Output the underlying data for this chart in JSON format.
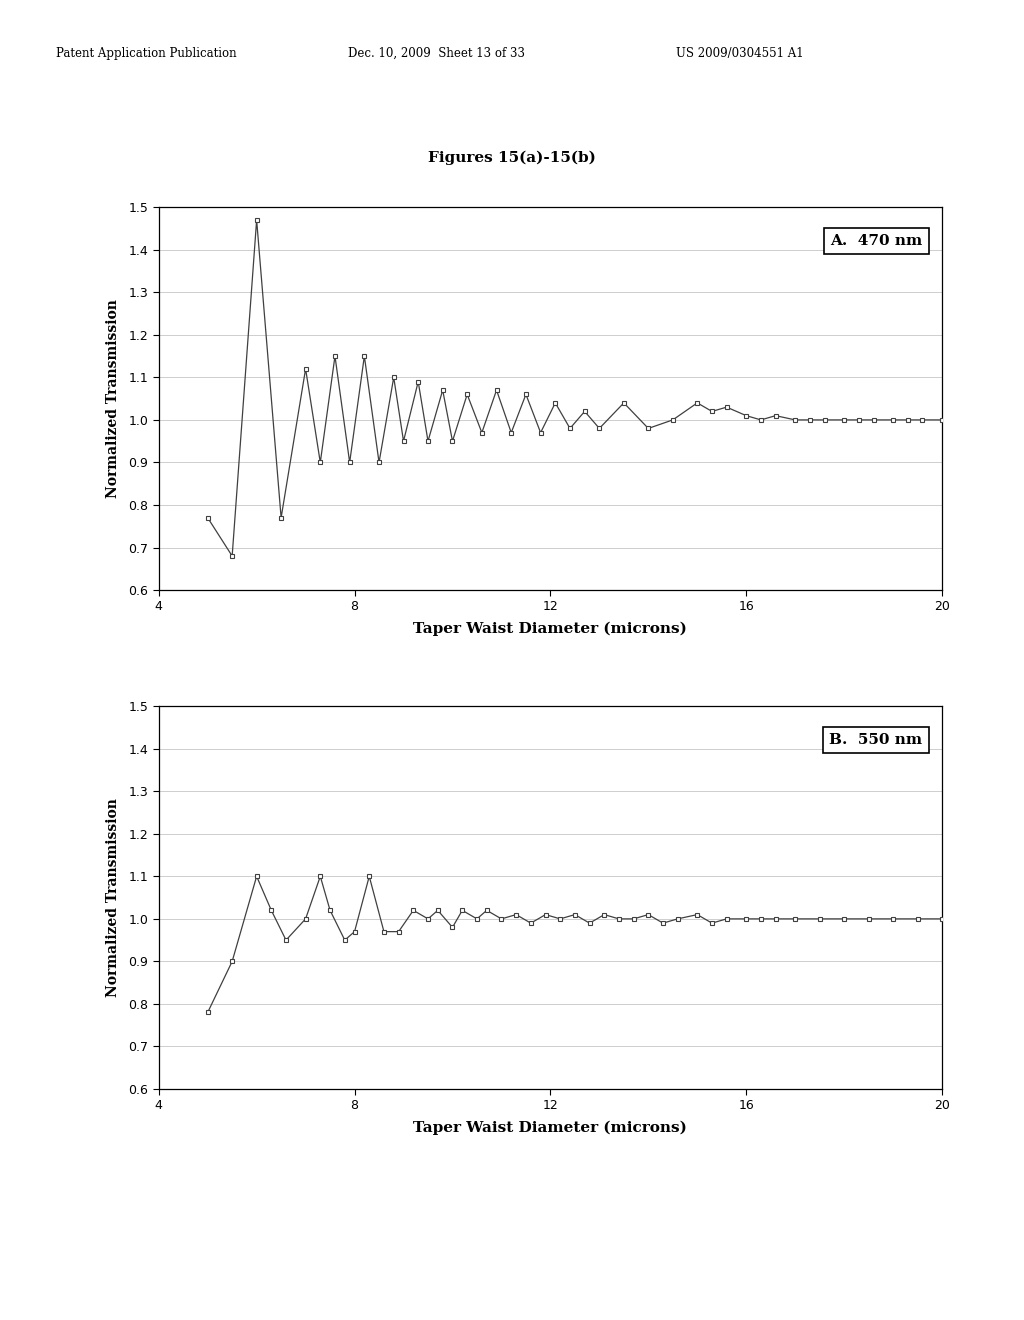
{
  "title": "Figures 15(a)-15(b)",
  "header_left": "Patent Application Publication",
  "header_center": "Dec. 10, 2009  Sheet 13 of 33",
  "header_right": "US 2009/0304551 A1",
  "xlabel": "Taper Waist Diameter (microns)",
  "ylabel": "Normalized Transmission",
  "xlim": [
    4,
    20
  ],
  "ylim": [
    0.6,
    1.5
  ],
  "xticks": [
    4,
    8,
    12,
    16,
    20
  ],
  "yticks": [
    0.6,
    0.7,
    0.8,
    0.9,
    1.0,
    1.1,
    1.2,
    1.3,
    1.4,
    1.5
  ],
  "plot_A_label": "A.  470 nm",
  "plot_B_label": "B.  550 nm",
  "plot_A_pts": [
    [
      5.0,
      0.77
    ],
    [
      5.5,
      0.68
    ],
    [
      6.0,
      1.47
    ],
    [
      6.5,
      0.77
    ],
    [
      7.0,
      1.12
    ],
    [
      7.3,
      0.9
    ],
    [
      7.6,
      1.15
    ],
    [
      7.9,
      0.9
    ],
    [
      8.2,
      1.15
    ],
    [
      8.5,
      0.9
    ],
    [
      8.8,
      1.1
    ],
    [
      9.0,
      0.95
    ],
    [
      9.3,
      1.09
    ],
    [
      9.5,
      0.95
    ],
    [
      9.8,
      1.07
    ],
    [
      10.0,
      0.95
    ],
    [
      10.3,
      1.06
    ],
    [
      10.6,
      0.97
    ],
    [
      10.9,
      1.07
    ],
    [
      11.2,
      0.97
    ],
    [
      11.5,
      1.06
    ],
    [
      11.8,
      0.97
    ],
    [
      12.1,
      1.04
    ],
    [
      12.4,
      0.98
    ],
    [
      12.7,
      1.02
    ],
    [
      13.0,
      0.98
    ],
    [
      13.5,
      1.04
    ],
    [
      14.0,
      0.98
    ],
    [
      14.5,
      1.0
    ],
    [
      15.0,
      1.04
    ],
    [
      15.3,
      1.02
    ],
    [
      15.6,
      1.03
    ],
    [
      16.0,
      1.01
    ],
    [
      16.3,
      1.0
    ],
    [
      16.6,
      1.01
    ],
    [
      17.0,
      1.0
    ],
    [
      17.3,
      1.0
    ],
    [
      17.6,
      1.0
    ],
    [
      18.0,
      1.0
    ],
    [
      18.3,
      1.0
    ],
    [
      18.6,
      1.0
    ],
    [
      19.0,
      1.0
    ],
    [
      19.3,
      1.0
    ],
    [
      19.6,
      1.0
    ],
    [
      20.0,
      1.0
    ]
  ],
  "plot_B_pts": [
    [
      5.0,
      0.78
    ],
    [
      5.5,
      0.9
    ],
    [
      6.0,
      1.1
    ],
    [
      6.3,
      1.02
    ],
    [
      6.6,
      0.95
    ],
    [
      7.0,
      1.0
    ],
    [
      7.3,
      1.1
    ],
    [
      7.5,
      1.02
    ],
    [
      7.8,
      0.95
    ],
    [
      8.0,
      0.97
    ],
    [
      8.3,
      1.1
    ],
    [
      8.6,
      0.97
    ],
    [
      8.9,
      0.97
    ],
    [
      9.2,
      1.02
    ],
    [
      9.5,
      1.0
    ],
    [
      9.7,
      1.02
    ],
    [
      10.0,
      0.98
    ],
    [
      10.2,
      1.02
    ],
    [
      10.5,
      1.0
    ],
    [
      10.7,
      1.02
    ],
    [
      11.0,
      1.0
    ],
    [
      11.3,
      1.01
    ],
    [
      11.6,
      0.99
    ],
    [
      11.9,
      1.01
    ],
    [
      12.2,
      1.0
    ],
    [
      12.5,
      1.01
    ],
    [
      12.8,
      0.99
    ],
    [
      13.1,
      1.01
    ],
    [
      13.4,
      1.0
    ],
    [
      13.7,
      1.0
    ],
    [
      14.0,
      1.01
    ],
    [
      14.3,
      0.99
    ],
    [
      14.6,
      1.0
    ],
    [
      15.0,
      1.01
    ],
    [
      15.3,
      0.99
    ],
    [
      15.6,
      1.0
    ],
    [
      16.0,
      1.0
    ],
    [
      16.3,
      1.0
    ],
    [
      16.6,
      1.0
    ],
    [
      17.0,
      1.0
    ],
    [
      17.5,
      1.0
    ],
    [
      18.0,
      1.0
    ],
    [
      18.5,
      1.0
    ],
    [
      19.0,
      1.0
    ],
    [
      19.5,
      1.0
    ],
    [
      20.0,
      1.0
    ]
  ]
}
